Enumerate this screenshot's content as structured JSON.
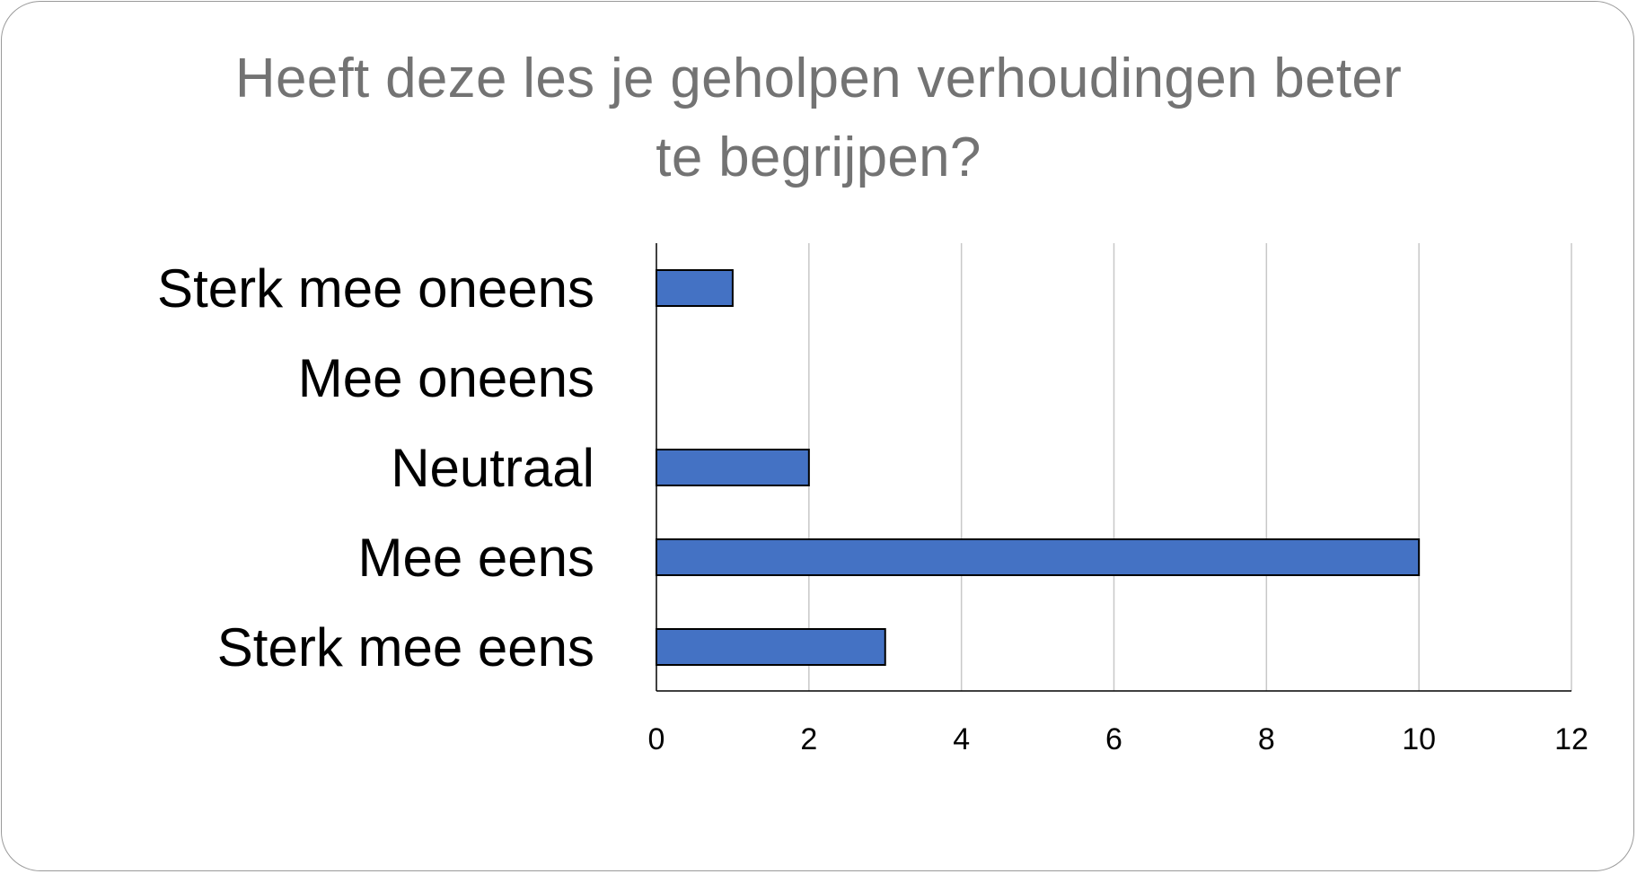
{
  "chart_data": {
    "type": "bar",
    "orientation": "horizontal",
    "title_lines": [
      "Heeft deze les je geholpen verhoudingen beter",
      "te begrijpen?"
    ],
    "categories": [
      "Sterk mee oneens",
      "Mee oneens",
      "Neutraal",
      "Mee eens",
      "Sterk mee eens"
    ],
    "values": [
      1,
      0,
      2,
      10,
      3
    ],
    "xlim": [
      0,
      12
    ],
    "xticks": [
      "0",
      "2",
      "4",
      "6",
      "8",
      "10",
      "12"
    ],
    "xlabel": "",
    "ylabel": "",
    "grid": "vertical",
    "legend": "none",
    "bar_color": "#4472C4",
    "bar_edge_color": "#000000",
    "grid_color": "#c8c8c8",
    "title_color": "#737373"
  }
}
